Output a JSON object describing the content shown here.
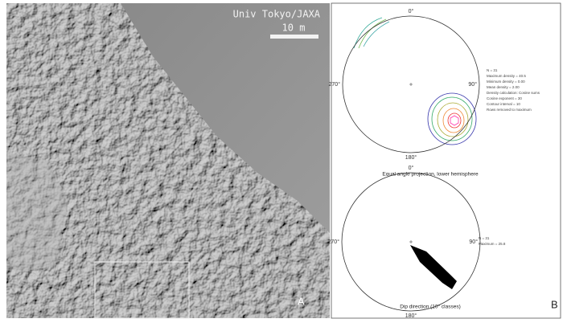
{
  "photo": {
    "credit": "Univ Tokyo/JAXA",
    "scale_bar": "10 m",
    "panel_label": "A"
  },
  "stereonets": [
    {
      "north": "0°",
      "east": "90°",
      "south": "180°",
      "west": "270°",
      "stats": [
        "N = 31",
        "Maximum density = 40.5",
        "Minimum density = 0.00",
        "Mean density = 2.00",
        "Density calculation: Cosine sums",
        "Cosine exponent = 30",
        "Contour interval = 10",
        "Rows removed to maximum"
      ],
      "caption": "Equal angle projection, lower hemisphere"
    },
    {
      "north": "0°",
      "east": "90°",
      "south": "180°",
      "west": "270°",
      "stats": [
        "N = 31",
        "Maximum = 25.8"
      ],
      "caption": "Dip direction (10° classes)"
    }
  ],
  "panel_label": "B"
}
